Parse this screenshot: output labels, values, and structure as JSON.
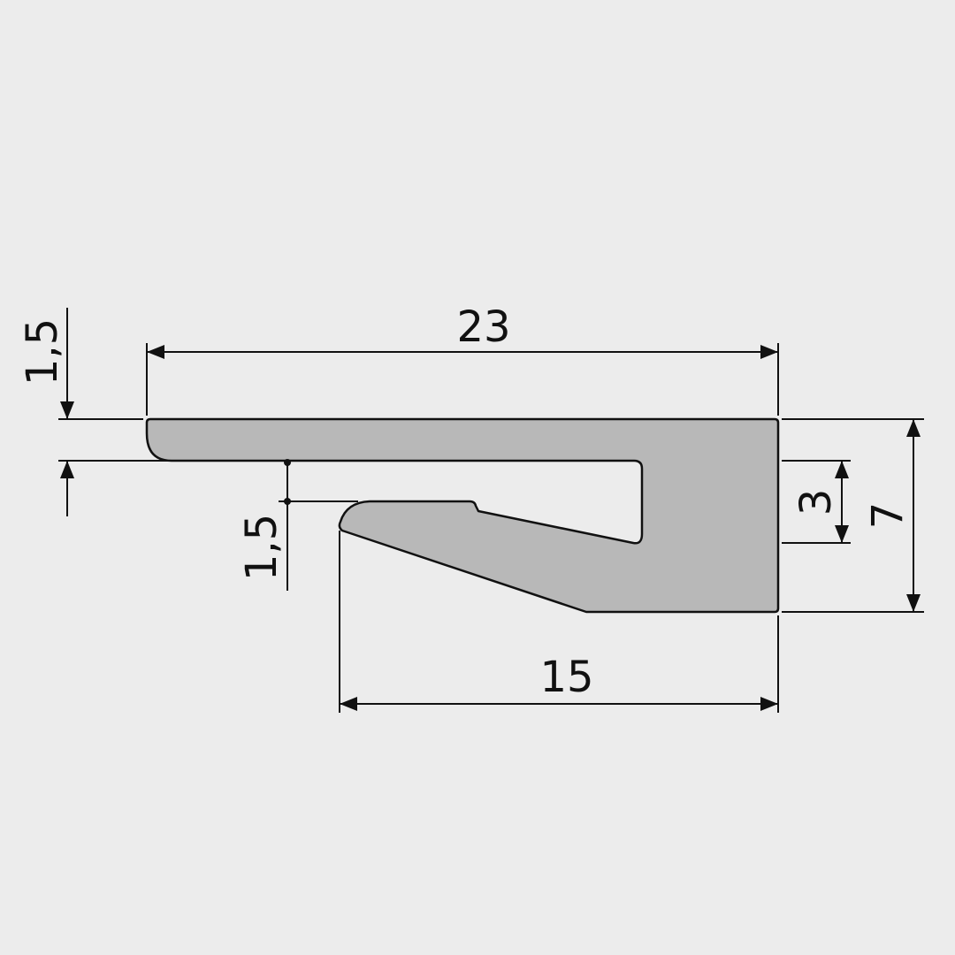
{
  "colors": {
    "background": "#ececec",
    "profile_fill": "#b8b8b8",
    "line": "#111111"
  },
  "dimensions": {
    "overall_width": "23",
    "base_width": "15",
    "overall_height": "7",
    "slot_height": "3",
    "top_thickness": "1,5",
    "lip_thickness": "1,5"
  }
}
